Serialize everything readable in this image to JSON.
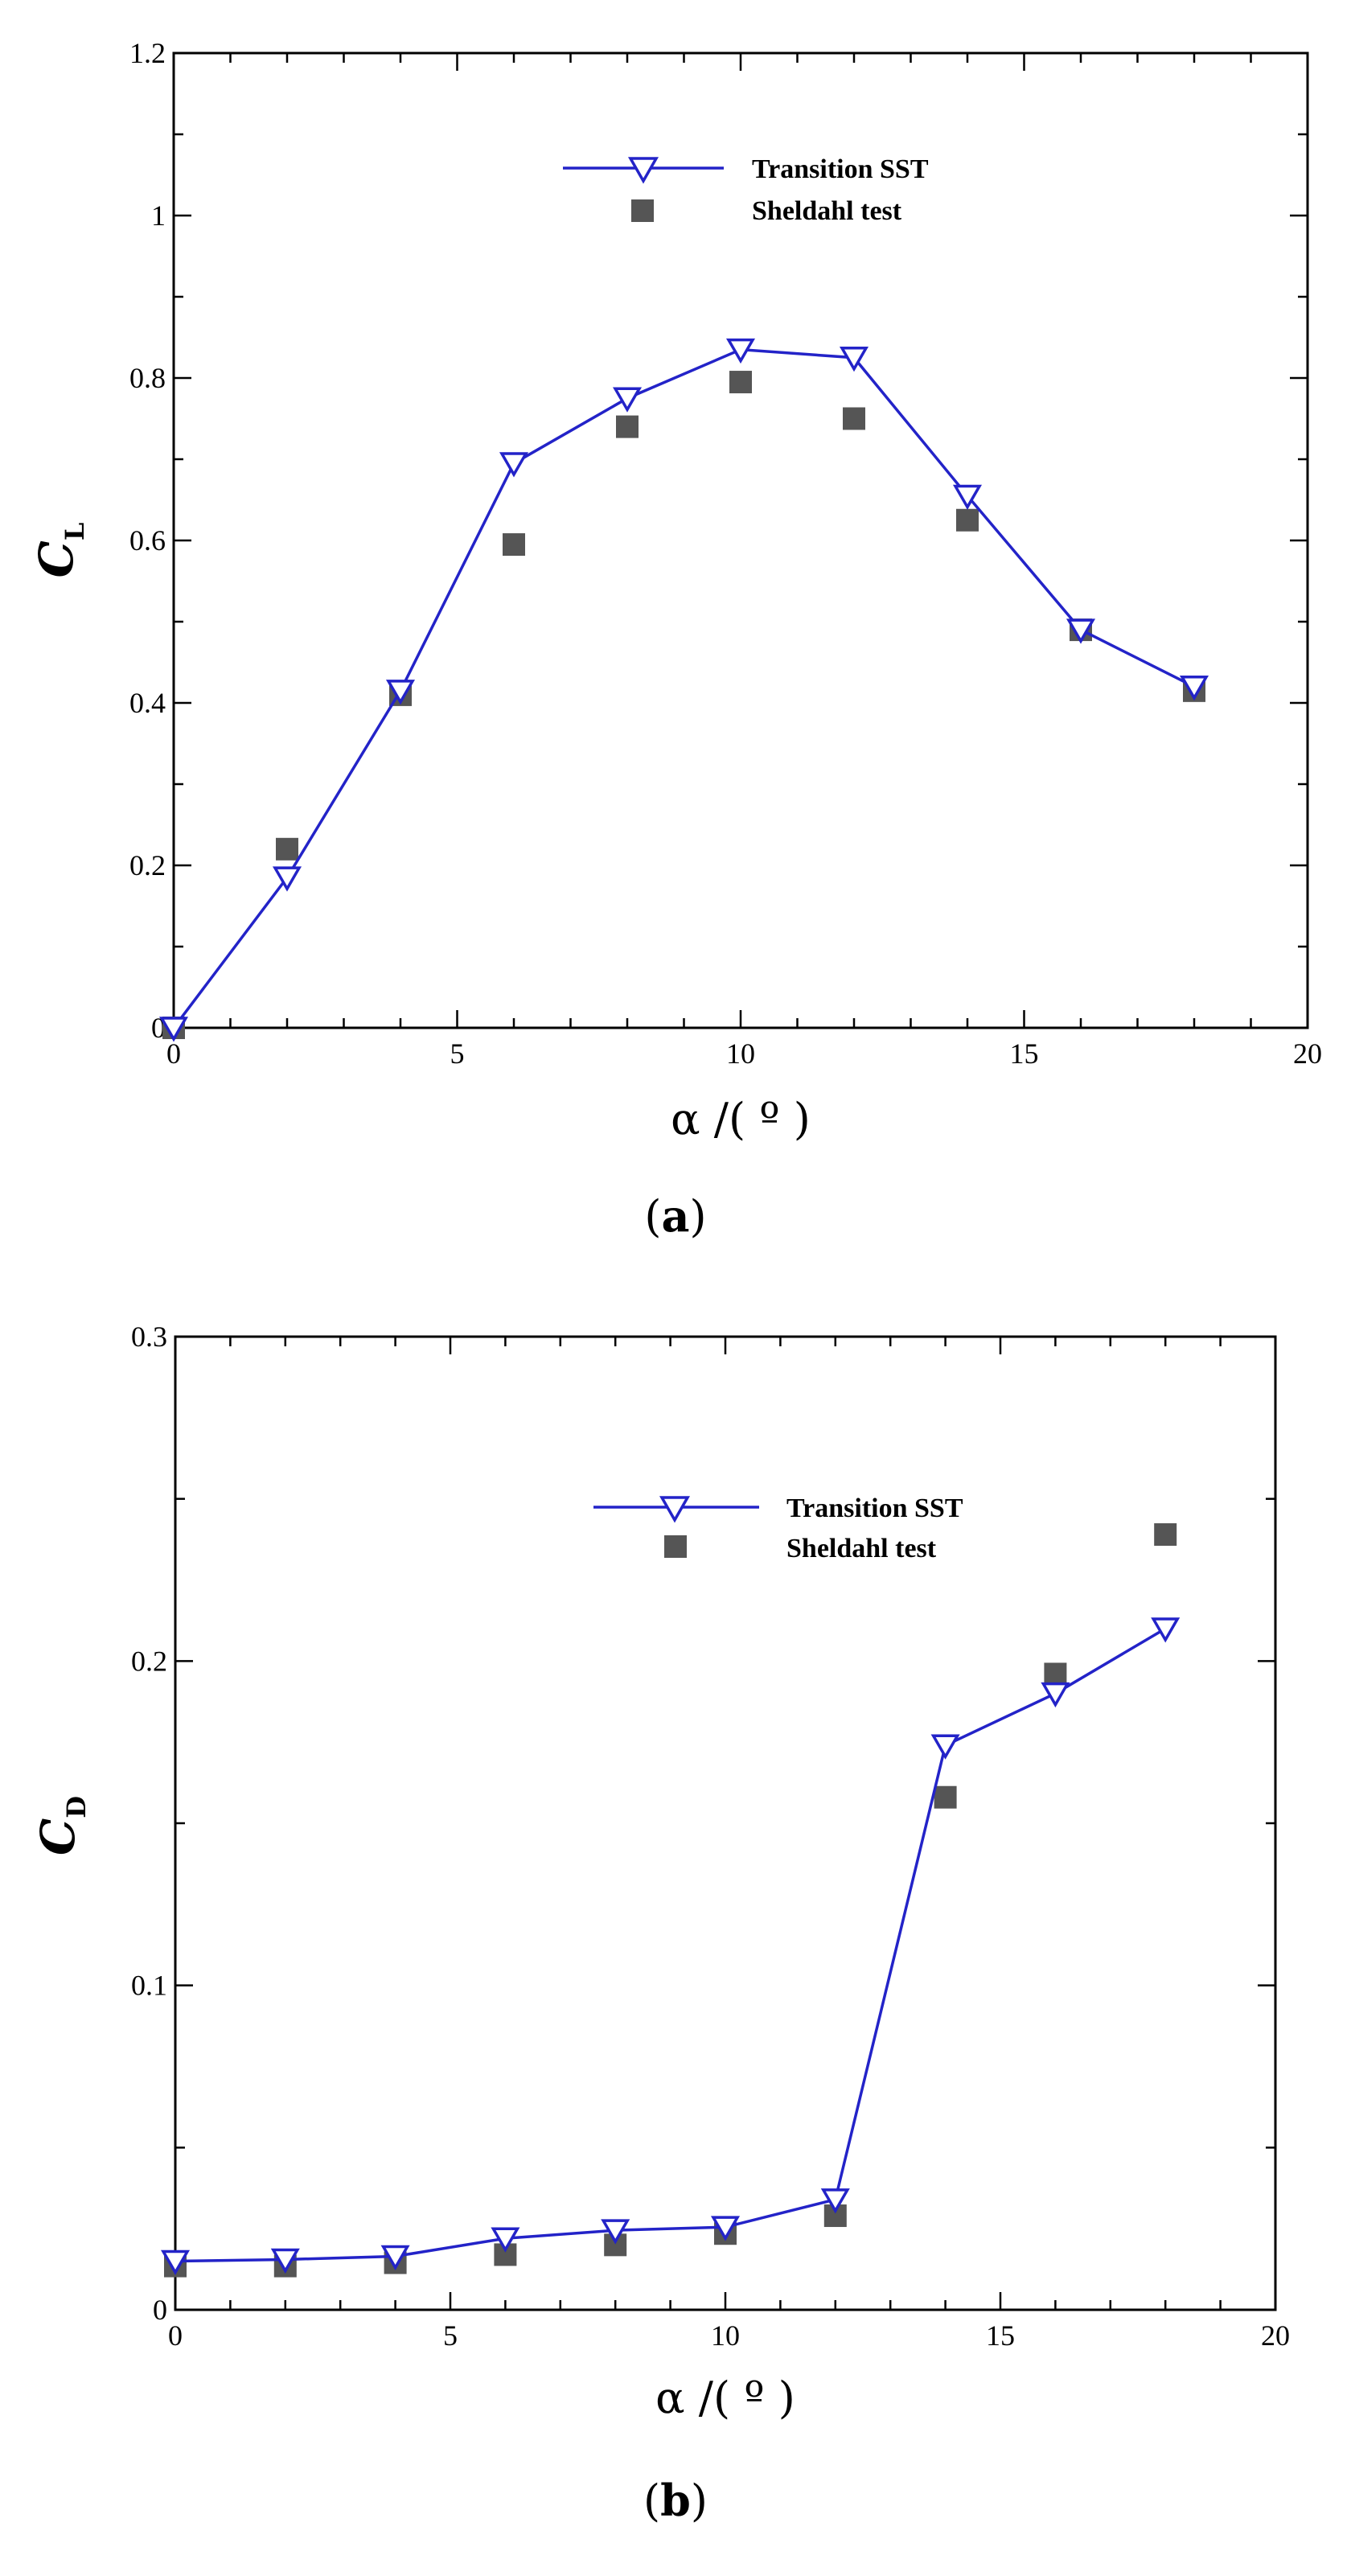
{
  "chart_data": [
    {
      "type": "line",
      "panel_label": "a",
      "xlabel": "α /( º )",
      "ylabel": "C",
      "ylabel_sub": "L",
      "xlim": [
        0,
        20
      ],
      "ylim": [
        0,
        1.2
      ],
      "x_major_ticks": [
        0,
        5,
        10,
        15,
        20
      ],
      "x_minor_step": 1,
      "y_major_ticks": [
        0,
        0.2,
        0.4,
        0.6,
        0.8,
        1.0,
        1.2
      ],
      "x_tick_labels": [
        "0",
        "5",
        "10",
        "15",
        "20"
      ],
      "y_tick_labels": [
        "0",
        "0.2",
        "0.4",
        "0.6",
        "0.8",
        "1",
        "1.2"
      ],
      "legend_position": "top-center",
      "grid": false,
      "series": [
        {
          "name": "Transition SST",
          "kind": "line-with-inverted-triangle-markers",
          "color": "#2323c8",
          "x": [
            0,
            2,
            4,
            6,
            8,
            10,
            12,
            14,
            16,
            18
          ],
          "y": [
            0.0,
            0.185,
            0.415,
            0.695,
            0.775,
            0.835,
            0.825,
            0.655,
            0.49,
            0.42
          ]
        },
        {
          "name": "Sheldahl test",
          "kind": "square-markers",
          "color": "#555555",
          "x": [
            0,
            2,
            4,
            6,
            8,
            10,
            12,
            14,
            16,
            18
          ],
          "y": [
            0.0,
            0.22,
            0.41,
            0.595,
            0.74,
            0.795,
            0.75,
            0.625,
            0.49,
            0.415
          ]
        }
      ]
    },
    {
      "type": "line",
      "panel_label": "b",
      "xlabel": "α /( º )",
      "ylabel": "C",
      "ylabel_sub": "D",
      "xlim": [
        0,
        20
      ],
      "ylim": [
        0,
        0.3
      ],
      "x_major_ticks": [
        0,
        5,
        10,
        15,
        20
      ],
      "x_minor_step": 1,
      "y_major_ticks": [
        0,
        0.1,
        0.2,
        0.3
      ],
      "x_tick_labels": [
        "0",
        "5",
        "10",
        "15",
        "20"
      ],
      "y_tick_labels": [
        "0",
        "0.1",
        "0.2",
        "0.3"
      ],
      "legend_position": "top-center",
      "grid": false,
      "series": [
        {
          "name": "Transition SST",
          "kind": "line-with-inverted-triangle-markers",
          "color": "#2323c8",
          "x": [
            0,
            2,
            4,
            6,
            8,
            10,
            12,
            14,
            16,
            18
          ],
          "y": [
            0.015,
            0.0155,
            0.0165,
            0.022,
            0.0245,
            0.0255,
            0.034,
            0.174,
            0.19,
            0.21
          ]
        },
        {
          "name": "Sheldahl test",
          "kind": "square-markers",
          "color": "#555555",
          "x": [
            0,
            2,
            4,
            6,
            8,
            10,
            12,
            14,
            16,
            18
          ],
          "y": [
            0.0135,
            0.0135,
            0.0145,
            0.017,
            0.02,
            0.0235,
            0.029,
            0.158,
            0.196,
            0.239
          ]
        }
      ]
    }
  ]
}
